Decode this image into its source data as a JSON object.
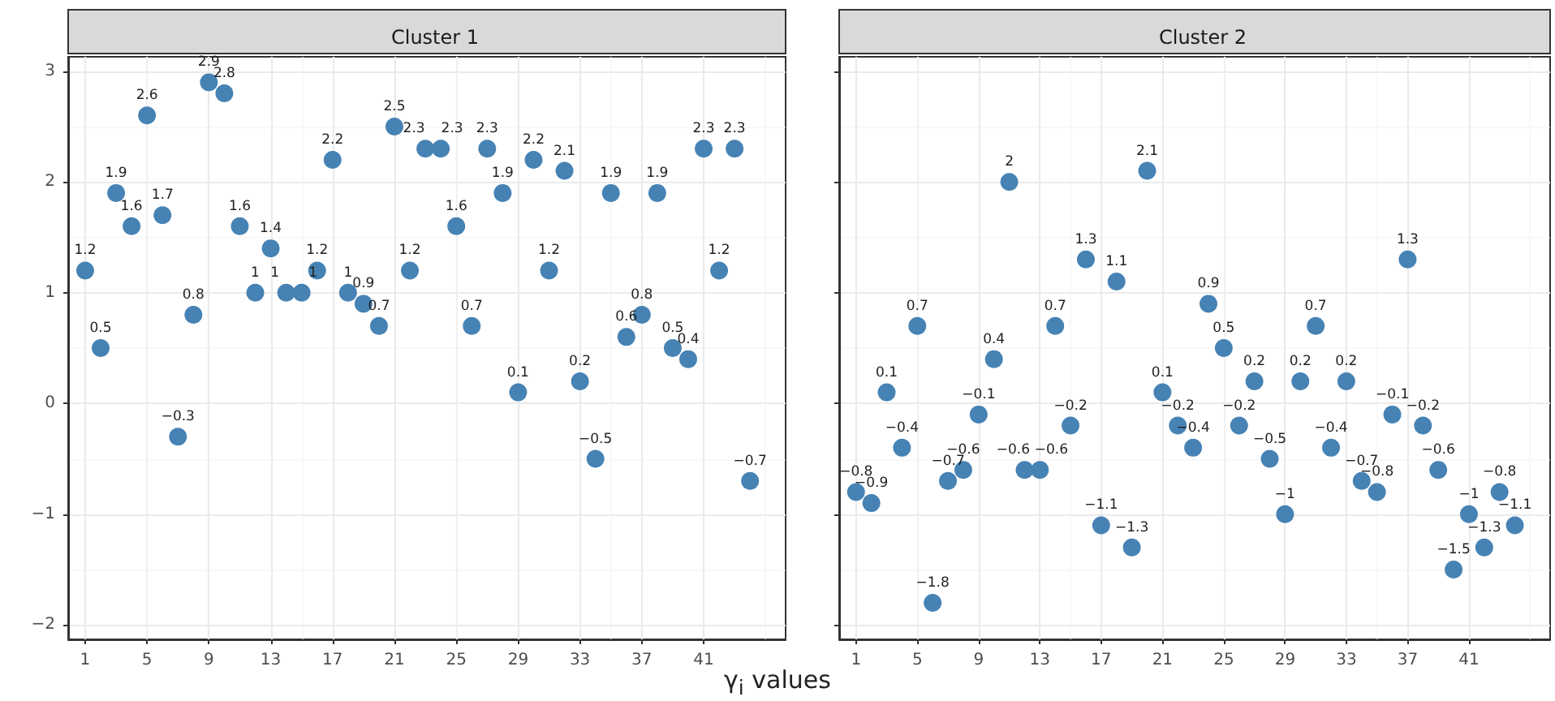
{
  "chart_data": [
    {
      "type": "scatter",
      "title": "Cluster 1",
      "xlabel": "γ$_{i}$ values",
      "x": [
        1,
        2,
        3,
        4,
        5,
        6,
        7,
        8,
        9,
        10,
        11,
        12,
        13,
        14,
        15,
        16,
        17,
        18,
        19,
        20,
        21,
        22,
        23,
        24,
        25,
        26,
        27,
        28,
        29,
        30,
        31,
        32,
        33,
        34,
        35,
        36,
        37,
        38,
        39,
        40,
        41,
        42,
        43,
        44
      ],
      "series": [
        {
          "color": "#4682b4",
          "values": [
            1.2,
            0.5,
            1.9,
            1.6,
            2.6,
            1.7,
            -0.3,
            0.8,
            2.9,
            2.8,
            1.6,
            1,
            1.4,
            1,
            1,
            1.2,
            2.2,
            1,
            0.9,
            0.7,
            2.5,
            1.2,
            2.3,
            2.3,
            1.6,
            0.7,
            2.3,
            1.9,
            0.1,
            2.2,
            1.2,
            2.1,
            0.2,
            -0.5,
            1.9,
            0.6,
            0.8,
            1.9,
            0.5,
            0.4,
            2.3,
            1.2,
            2.3,
            -0.7
          ]
        }
      ],
      "xlim": [
        -0.1,
        46.3
      ],
      "xticks": [
        1,
        5,
        9,
        13,
        17,
        21,
        25,
        29,
        33,
        37,
        41
      ],
      "ylim": [
        -2.13,
        3.13
      ],
      "yticks": [
        -2,
        -1,
        0,
        1,
        2,
        3
      ],
      "grid": true,
      "marker": "circle",
      "data_labels": true
    },
    {
      "type": "scatter",
      "title": "Cluster 2",
      "x": [
        1,
        2,
        3,
        4,
        5,
        6,
        7,
        8,
        9,
        10,
        11,
        12,
        13,
        14,
        15,
        16,
        17,
        18,
        19,
        20,
        21,
        22,
        23,
        24,
        25,
        26,
        27,
        28,
        29,
        30,
        31,
        32,
        33,
        34,
        35,
        36,
        37,
        38,
        39,
        40,
        41,
        42,
        43,
        44
      ],
      "series": [
        {
          "color": "#4682b4",
          "values": [
            -0.8,
            -0.9,
            0.1,
            -0.4,
            0.7,
            -1.8,
            -0.7,
            -0.6,
            -0.1,
            0.4,
            2,
            -0.6,
            -0.6,
            0.7,
            -0.2,
            1.3,
            -1.1,
            1.1,
            -1.3,
            2.1,
            0.1,
            -0.2,
            -0.4,
            0.9,
            0.5,
            -0.2,
            0.2,
            -0.5,
            -1,
            0.2,
            0.7,
            -0.4,
            0.2,
            -0.7,
            -0.8,
            -0.1,
            1.3,
            -0.2,
            -0.6,
            -1.5,
            -1,
            -1.3,
            -0.8,
            -1.1
          ]
        }
      ],
      "xlim": [
        -0.1,
        46.3
      ],
      "xticks": [
        1,
        5,
        9,
        13,
        17,
        21,
        25,
        29,
        33,
        37,
        41
      ],
      "ylim": [
        -2.13,
        3.13
      ],
      "yticks": [
        -2,
        -1,
        0,
        1,
        2,
        3
      ],
      "grid": true,
      "marker": "circle",
      "data_labels": true,
      "tick_labels": "x"
    }
  ]
}
